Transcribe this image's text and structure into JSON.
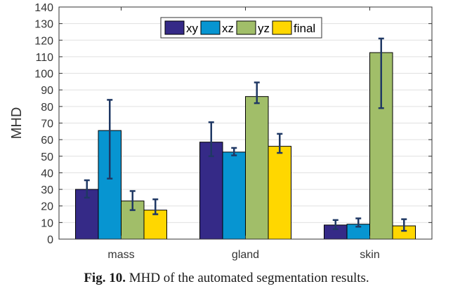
{
  "chart_data": {
    "type": "bar",
    "title": "",
    "xlabel": "",
    "ylabel": "MHD",
    "ylim": [
      0,
      140
    ],
    "yticks": [
      0,
      10,
      20,
      30,
      40,
      50,
      60,
      70,
      80,
      90,
      100,
      110,
      120,
      130,
      140
    ],
    "grid": true,
    "legend_position": "top-center",
    "categories": [
      "mass",
      "gland",
      "skin"
    ],
    "series": [
      {
        "name": "xy",
        "color": "#352a87",
        "values": [
          30,
          58.5,
          8.5
        ],
        "error_low": [
          25,
          50,
          6
        ],
        "error_high": [
          35.5,
          70.5,
          11.5
        ]
      },
      {
        "name": "xz",
        "color": "#0795d1",
        "values": [
          65.5,
          52.5,
          9
        ],
        "error_low": [
          36.5,
          50.5,
          7.5
        ],
        "error_high": [
          84,
          55,
          12.5
        ]
      },
      {
        "name": "yz",
        "color": "#a1be69",
        "values": [
          23,
          86,
          112.5
        ],
        "error_low": [
          17.5,
          82,
          79
        ],
        "error_high": [
          29,
          94.5,
          121
        ]
      },
      {
        "name": "final",
        "color": "#ffd700",
        "values": [
          17.5,
          56,
          8
        ],
        "error_low": [
          15,
          52,
          5
        ],
        "error_high": [
          24,
          63.5,
          12
        ]
      }
    ],
    "error_bar_color": "#1f3864"
  },
  "caption": {
    "label": "Fig. 10.",
    "text": " MHD of the automated segmentation results."
  }
}
